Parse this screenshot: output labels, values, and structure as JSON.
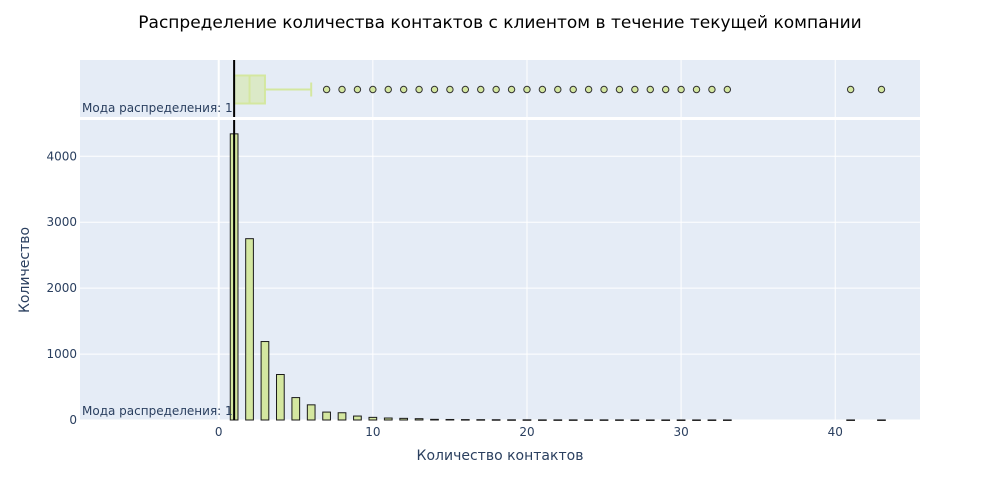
{
  "chart_data": {
    "type": "bar",
    "title": "Распределение количества контактов с клиентом в течение текущей компании",
    "xlabel": "Количество контактов",
    "ylabel": "Количество",
    "xlim": [
      -9,
      45.5
    ],
    "ylim": [
      0,
      4550
    ],
    "x_ticks": [
      0,
      10,
      20,
      30,
      40
    ],
    "y_ticks": [
      0,
      1000,
      2000,
      3000,
      4000
    ],
    "grid": true,
    "annotation": "Мода распределения: 1",
    "mode": 1,
    "bar_color": "#d4e7a0",
    "bar_edge_color": "#1a1a1a",
    "plot_bg": "#e5ecf6",
    "histogram": {
      "x": [
        1,
        2,
        3,
        4,
        5,
        6,
        7,
        8,
        9,
        10,
        11,
        12,
        13,
        14,
        15,
        16,
        17,
        18,
        19,
        20,
        21,
        22,
        23,
        24,
        25,
        26,
        27,
        28,
        29,
        30,
        31,
        32,
        33,
        41,
        43
      ],
      "values": [
        4340,
        2750,
        1190,
        690,
        340,
        230,
        120,
        110,
        60,
        40,
        30,
        25,
        20,
        10,
        8,
        6,
        5,
        4,
        3,
        3,
        2,
        2,
        2,
        2,
        2,
        2,
        1,
        1,
        1,
        1,
        1,
        1,
        1,
        1,
        1
      ]
    },
    "boxplot": {
      "min": 1,
      "q1": 1,
      "median": 2,
      "q3": 3,
      "upper_fence": 6,
      "box_color": "#d4e7a0",
      "outliers": [
        7,
        8,
        9,
        10,
        11,
        12,
        13,
        14,
        15,
        16,
        17,
        18,
        19,
        20,
        21,
        22,
        23,
        24,
        25,
        26,
        27,
        28,
        29,
        30,
        31,
        32,
        33,
        41,
        43
      ]
    }
  }
}
